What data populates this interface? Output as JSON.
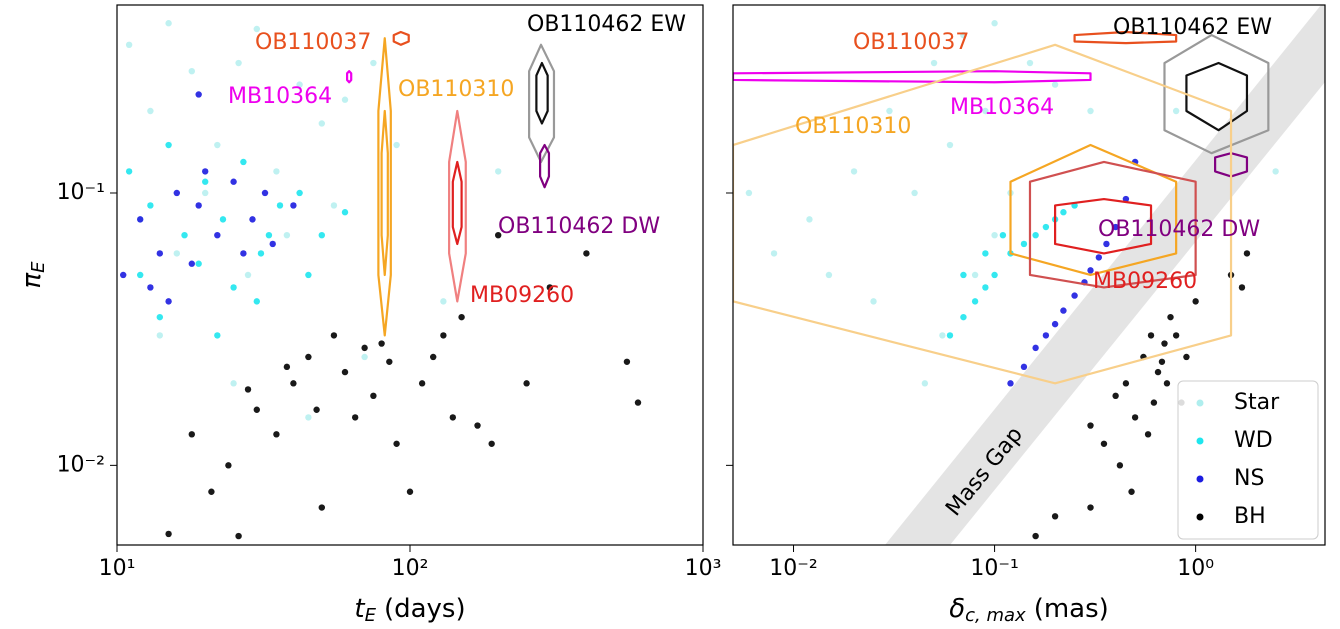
{
  "chart_data": [
    {
      "type": "scatter",
      "xscale": "log",
      "yscale": "log",
      "xlim": [
        10,
        1000
      ],
      "ylim": [
        0.0051,
        0.49
      ],
      "xticks": [
        {
          "value": 10,
          "label": "10¹"
        },
        {
          "value": 100,
          "label": "10²"
        },
        {
          "value": 1000,
          "label": "10³"
        }
      ],
      "yticks": [
        {
          "value": 0.01,
          "label": "10⁻²"
        },
        {
          "value": 0.1,
          "label": "10⁻¹"
        }
      ],
      "xlabel": {
        "symbol": "t",
        "subscript": "E",
        "unit": "(days)"
      },
      "ylabel": {
        "symbol": "π",
        "subscript": "E"
      },
      "series": [
        {
          "name": "Star",
          "color": "#afeeee",
          "x": [
            11,
            13,
            15,
            18,
            22,
            26,
            30,
            35,
            42,
            50,
            60,
            75,
            12,
            16,
            20,
            28,
            38,
            55,
            90,
            130,
            14,
            25,
            45,
            70,
            200
          ],
          "y": [
            0.35,
            0.2,
            0.42,
            0.28,
            0.15,
            0.3,
            0.4,
            0.12,
            0.25,
            0.18,
            0.22,
            0.3,
            0.08,
            0.06,
            0.1,
            0.05,
            0.07,
            0.09,
            0.15,
            0.04,
            0.03,
            0.02,
            0.015,
            0.025,
            0.12
          ]
        },
        {
          "name": "WD",
          "color": "#1ee6ee",
          "x": [
            11,
            13,
            15,
            17,
            20,
            23,
            27,
            31,
            36,
            42,
            50,
            12,
            19,
            25,
            33,
            45,
            14,
            22,
            30,
            60
          ],
          "y": [
            0.12,
            0.09,
            0.15,
            0.07,
            0.11,
            0.08,
            0.13,
            0.06,
            0.09,
            0.1,
            0.07,
            0.05,
            0.055,
            0.045,
            0.07,
            0.05,
            0.035,
            0.03,
            0.04,
            0.085
          ]
        },
        {
          "name": "NS",
          "color": "#1c1ce0",
          "x": [
            10.5,
            12,
            14,
            16,
            19,
            22,
            25,
            29,
            34,
            40,
            13,
            18,
            27,
            32,
            20,
            15,
            19
          ],
          "y": [
            0.05,
            0.08,
            0.06,
            0.1,
            0.09,
            0.07,
            0.11,
            0.08,
            0.065,
            0.09,
            0.045,
            0.055,
            0.06,
            0.1,
            0.12,
            0.04,
            0.23
          ]
        },
        {
          "name": "BH",
          "color": "#000000",
          "x": [
            15,
            18,
            21,
            24,
            26,
            30,
            35,
            40,
            45,
            50,
            55,
            60,
            65,
            70,
            75,
            80,
            90,
            100,
            110,
            120,
            130,
            150,
            170,
            200,
            250,
            300,
            400,
            550,
            600,
            28,
            38,
            48,
            85,
            140,
            190
          ],
          "y": [
            0.0056,
            0.013,
            0.008,
            0.01,
            0.0055,
            0.016,
            0.013,
            0.02,
            0.025,
            0.007,
            0.03,
            0.022,
            0.015,
            0.027,
            0.018,
            0.028,
            0.012,
            0.008,
            0.02,
            0.025,
            0.03,
            0.035,
            0.014,
            0.07,
            0.02,
            0.045,
            0.06,
            0.024,
            0.017,
            0.019,
            0.023,
            0.016,
            0.024,
            0.015,
            0.012
          ]
        }
      ],
      "contours": [
        {
          "color": "#e8501e",
          "x": [
            93,
            99,
            99,
            93,
            88,
            88
          ],
          "y": [
            0.39,
            0.38,
            0.36,
            0.35,
            0.36,
            0.38
          ]
        },
        {
          "color": "#f5a623",
          "x": [
            82,
            86,
            86,
            82,
            78,
            78
          ],
          "y": [
            0.37,
            0.2,
            0.05,
            0.03,
            0.05,
            0.2
          ]
        },
        {
          "color": "#f5a623",
          "x": [
            82,
            84,
            84,
            82,
            80,
            80
          ],
          "y": [
            0.2,
            0.14,
            0.07,
            0.05,
            0.07,
            0.14
          ]
        },
        {
          "color": "#f08080",
          "x": [
            145,
            155,
            155,
            145,
            136,
            136
          ],
          "y": [
            0.2,
            0.13,
            0.06,
            0.04,
            0.06,
            0.13
          ]
        },
        {
          "color": "#e02020",
          "x": [
            145,
            150,
            150,
            145,
            140,
            140
          ],
          "y": [
            0.13,
            0.11,
            0.075,
            0.065,
            0.075,
            0.11
          ]
        },
        {
          "color": "#999999",
          "x": [
            280,
            310,
            310,
            280,
            255,
            255
          ],
          "y": [
            0.35,
            0.28,
            0.16,
            0.13,
            0.16,
            0.28
          ]
        },
        {
          "color": "#111111",
          "x": [
            282,
            295,
            295,
            282,
            270,
            270
          ],
          "y": [
            0.3,
            0.27,
            0.2,
            0.18,
            0.2,
            0.27
          ]
        },
        {
          "color": "#800080",
          "x": [
            288,
            298,
            298,
            288,
            278,
            278
          ],
          "y": [
            0.15,
            0.14,
            0.115,
            0.105,
            0.115,
            0.14
          ]
        },
        {
          "color": "#ee00ee",
          "x": [
            62,
            63,
            63,
            62,
            61,
            61
          ],
          "y": [
            0.28,
            0.275,
            0.26,
            0.255,
            0.26,
            0.275
          ]
        }
      ],
      "annotations": [
        {
          "text": "OB110037",
          "color": "#e8501e"
        },
        {
          "text": "OB110462 EW",
          "color": "#000000"
        },
        {
          "text": "MB10364",
          "color": "#ee00ee"
        },
        {
          "text": "OB110310",
          "color": "#f5a623"
        },
        {
          "text": "OB110462 DW",
          "color": "#800080"
        },
        {
          "text": "MB09260",
          "color": "#e02020"
        }
      ]
    },
    {
      "type": "scatter",
      "xscale": "log",
      "yscale": "log",
      "xlim": [
        0.005,
        4.4
      ],
      "ylim": [
        0.0051,
        0.49
      ],
      "xticks": [
        {
          "value": 0.01,
          "label": "10⁻²"
        },
        {
          "value": 0.1,
          "label": "10⁻¹"
        },
        {
          "value": 1,
          "label": "10⁰"
        }
      ],
      "yticks": [
        0.01,
        0.1
      ],
      "xlabel": {
        "symbol": "δ",
        "subscript": "c, max",
        "unit": "(mas)"
      },
      "legend": "lower right",
      "band_label": "Mass Gap",
      "series": [
        {
          "name": "Star",
          "color": "#afeeee",
          "x": [
            0.008,
            0.012,
            0.02,
            0.03,
            0.05,
            0.07,
            0.1,
            0.15,
            0.2,
            0.3,
            0.006,
            0.015,
            0.025,
            0.04,
            0.06,
            0.09,
            0.12,
            0.045,
            0.055,
            0.08,
            0.1,
            0.25,
            0.5,
            0.8,
            2.5
          ],
          "y": [
            0.06,
            0.08,
            0.12,
            0.2,
            0.3,
            0.38,
            0.42,
            0.3,
            0.25,
            0.2,
            0.1,
            0.05,
            0.04,
            0.1,
            0.15,
            0.2,
            0.1,
            0.02,
            0.03,
            0.05,
            0.07,
            0.09,
            0.13,
            0.2,
            0.12
          ]
        },
        {
          "name": "WD",
          "color": "#1ee6ee",
          "x": [
            0.06,
            0.07,
            0.08,
            0.09,
            0.1,
            0.12,
            0.14,
            0.16,
            0.18,
            0.2,
            0.22,
            0.25,
            0.07,
            0.09,
            0.11
          ],
          "y": [
            0.03,
            0.035,
            0.04,
            0.045,
            0.05,
            0.06,
            0.065,
            0.07,
            0.075,
            0.08,
            0.085,
            0.09,
            0.05,
            0.06,
            0.07
          ]
        },
        {
          "name": "NS",
          "color": "#1c1ce0",
          "x": [
            0.12,
            0.14,
            0.16,
            0.18,
            0.2,
            0.22,
            0.25,
            0.28,
            0.3,
            0.33,
            0.36,
            0.4,
            0.45,
            0.5
          ],
          "y": [
            0.02,
            0.023,
            0.027,
            0.03,
            0.033,
            0.037,
            0.042,
            0.047,
            0.052,
            0.058,
            0.065,
            0.075,
            0.095,
            0.13
          ]
        },
        {
          "name": "BH",
          "color": "#000000",
          "x": [
            0.3,
            0.35,
            0.4,
            0.45,
            0.5,
            0.55,
            0.6,
            0.65,
            0.7,
            0.75,
            0.8,
            0.9,
            1.0,
            0.42,
            0.48,
            0.58,
            0.62,
            0.68,
            0.72,
            0.3,
            0.16,
            0.2,
            1.5,
            1.8,
            1.7,
            0.85
          ],
          "y": [
            0.014,
            0.012,
            0.018,
            0.02,
            0.015,
            0.025,
            0.03,
            0.022,
            0.028,
            0.035,
            0.03,
            0.025,
            0.04,
            0.01,
            0.008,
            0.013,
            0.017,
            0.024,
            0.02,
            0.007,
            0.0055,
            0.0065,
            0.05,
            0.06,
            0.045,
            0.017
          ]
        }
      ],
      "contours": [
        {
          "color": "#999999",
          "x": [
            1.2,
            2.3,
            2.3,
            1.2,
            0.7,
            0.7
          ],
          "y": [
            0.38,
            0.3,
            0.17,
            0.14,
            0.17,
            0.3
          ]
        },
        {
          "color": "#111111",
          "x": [
            1.3,
            1.8,
            1.8,
            1.3,
            0.9,
            0.9
          ],
          "y": [
            0.3,
            0.27,
            0.2,
            0.17,
            0.2,
            0.27
          ]
        },
        {
          "color": "#800080",
          "x": [
            1.5,
            1.8,
            1.8,
            1.5,
            1.25,
            1.25
          ],
          "y": [
            0.14,
            0.135,
            0.12,
            0.115,
            0.12,
            0.135
          ]
        },
        {
          "color": "#e8501e",
          "x": [
            0.45,
            0.8,
            0.8,
            0.45,
            0.25,
            0.25
          ],
          "y": [
            0.39,
            0.38,
            0.36,
            0.355,
            0.36,
            0.38
          ]
        },
        {
          "color": "#ee00ee",
          "x": [
            0.1,
            0.3,
            0.3,
            0.1,
            0.005,
            0.005
          ],
          "y": [
            0.28,
            0.275,
            0.26,
            0.255,
            0.26,
            0.275
          ]
        },
        {
          "color": "#f8cf8a",
          "x": [
            0.2,
            1.5,
            1.5,
            0.2,
            0.005,
            0.005
          ],
          "y": [
            0.35,
            0.2,
            0.03,
            0.02,
            0.04,
            0.15
          ]
        },
        {
          "color": "#f5a623",
          "x": [
            0.3,
            0.8,
            0.8,
            0.3,
            0.12,
            0.12
          ],
          "y": [
            0.15,
            0.11,
            0.06,
            0.05,
            0.06,
            0.11
          ]
        },
        {
          "color": "#d05050",
          "x": [
            0.35,
            1,
            1,
            0.35,
            0.15,
            0.15
          ],
          "y": [
            0.13,
            0.11,
            0.05,
            0.045,
            0.05,
            0.11
          ]
        },
        {
          "color": "#e02020",
          "x": [
            0.35,
            0.6,
            0.6,
            0.35,
            0.2,
            0.2
          ],
          "y": [
            0.095,
            0.09,
            0.065,
            0.06,
            0.065,
            0.09
          ]
        }
      ],
      "annotations": [
        {
          "text": "OB110462 EW",
          "color": "#000000"
        },
        {
          "text": "OB110037",
          "color": "#e8501e"
        },
        {
          "text": "MB10364",
          "color": "#ee00ee"
        },
        {
          "text": "OB110310",
          "color": "#f5a623"
        },
        {
          "text": "OB110462 DW",
          "color": "#800080"
        },
        {
          "text": "MB09260",
          "color": "#e02020"
        }
      ]
    }
  ]
}
